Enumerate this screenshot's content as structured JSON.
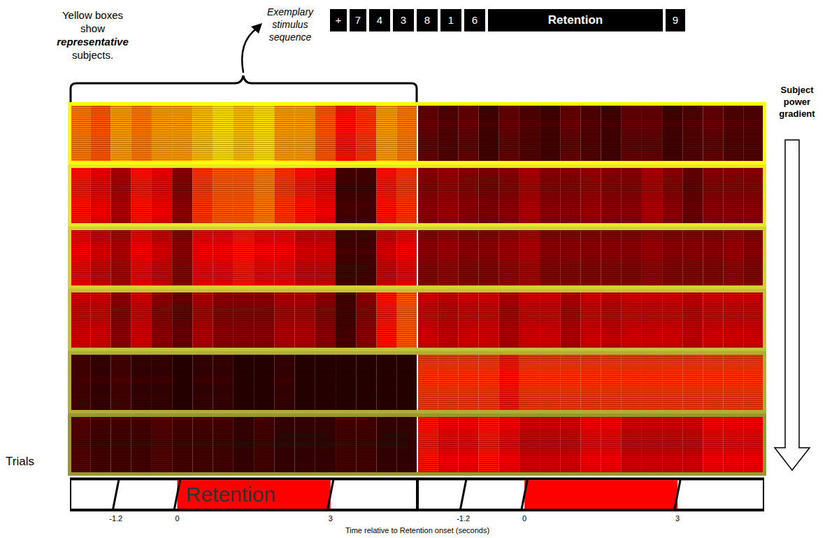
{
  "chart_data": {
    "type": "heatmap",
    "note": "Yellow boxes show representative subjects.",
    "note_emphasis": "representative",
    "sequence_title": "Exemplary stimulus sequence",
    "sequence": [
      "+",
      "7",
      "4",
      "3",
      "8",
      "1",
      "6",
      "Retention",
      "9"
    ],
    "gradient_label": "Subject power gradient",
    "y_label": "Trials",
    "x_label": "Time relative to Retention onset (seconds)",
    "xlim": [
      -2.1,
      4.7
    ],
    "xticks": [
      -1.2,
      0,
      3
    ],
    "retention_span": [
      0,
      3
    ],
    "time_bins": [
      -2.1,
      -1.7,
      -1.3,
      -0.9,
      -0.5,
      -0.1,
      0.3,
      0.7,
      1.1,
      1.5,
      1.9,
      2.3,
      2.7,
      3.1,
      3.5,
      3.9,
      4.3,
      4.7
    ],
    "colors": [
      "#ffff00",
      "#e9e826",
      "#d4d233",
      "#c4c236",
      "#b1af33",
      "#9a982c"
    ],
    "panels": [
      {
        "timeline_label": "Retention",
        "cells": [
          [
            0.55,
            0.5,
            0.6,
            0.55,
            0.6,
            0.6,
            0.65,
            0.7,
            0.65,
            0.7,
            0.6,
            0.6,
            0.5,
            0.4,
            0.45,
            0.6,
            0.55
          ],
          [
            0.4,
            0.35,
            0.25,
            0.4,
            0.35,
            0.2,
            0.45,
            0.5,
            0.5,
            0.55,
            0.45,
            0.4,
            0.35,
            0.1,
            0.1,
            0.4,
            0.45
          ],
          [
            0.35,
            0.3,
            0.25,
            0.35,
            0.3,
            0.2,
            0.35,
            0.35,
            0.4,
            0.35,
            0.35,
            0.3,
            0.3,
            0.1,
            0.1,
            0.3,
            0.35
          ],
          [
            0.3,
            0.3,
            0.2,
            0.3,
            0.2,
            0.15,
            0.25,
            0.2,
            0.2,
            0.2,
            0.25,
            0.25,
            0.2,
            0.1,
            0.2,
            0.4,
            0.5
          ],
          [
            0.1,
            0.08,
            0.1,
            0.08,
            0.08,
            0.06,
            0.08,
            0.08,
            0.06,
            0.06,
            0.08,
            0.06,
            0.06,
            0.06,
            0.06,
            0.06,
            0.06
          ],
          [
            0.12,
            0.1,
            0.1,
            0.1,
            0.12,
            0.1,
            0.1,
            0.1,
            0.08,
            0.1,
            0.08,
            0.08,
            0.08,
            0.1,
            0.1,
            0.08,
            0.08
          ]
        ]
      },
      {
        "cells": [
          [
            0.15,
            0.12,
            0.15,
            0.1,
            0.15,
            0.12,
            0.1,
            0.15,
            0.12,
            0.1,
            0.15,
            0.15,
            0.1,
            0.12,
            0.15,
            0.12,
            0.12
          ],
          [
            0.2,
            0.22,
            0.2,
            0.18,
            0.2,
            0.25,
            0.2,
            0.2,
            0.22,
            0.2,
            0.2,
            0.25,
            0.2,
            0.15,
            0.2,
            0.2,
            0.2
          ],
          [
            0.2,
            0.22,
            0.2,
            0.2,
            0.22,
            0.25,
            0.2,
            0.2,
            0.2,
            0.2,
            0.2,
            0.22,
            0.2,
            0.2,
            0.2,
            0.22,
            0.2
          ],
          [
            0.3,
            0.28,
            0.3,
            0.3,
            0.25,
            0.3,
            0.3,
            0.25,
            0.3,
            0.28,
            0.3,
            0.3,
            0.3,
            0.28,
            0.3,
            0.3,
            0.3
          ],
          [
            0.45,
            0.45,
            0.45,
            0.45,
            0.4,
            0.45,
            0.45,
            0.45,
            0.45,
            0.45,
            0.45,
            0.45,
            0.45,
            0.45,
            0.45,
            0.45,
            0.45
          ],
          [
            0.4,
            0.35,
            0.35,
            0.4,
            0.35,
            0.3,
            0.3,
            0.3,
            0.35,
            0.35,
            0.3,
            0.3,
            0.3,
            0.3,
            0.35,
            0.35,
            0.35
          ]
        ]
      }
    ]
  }
}
